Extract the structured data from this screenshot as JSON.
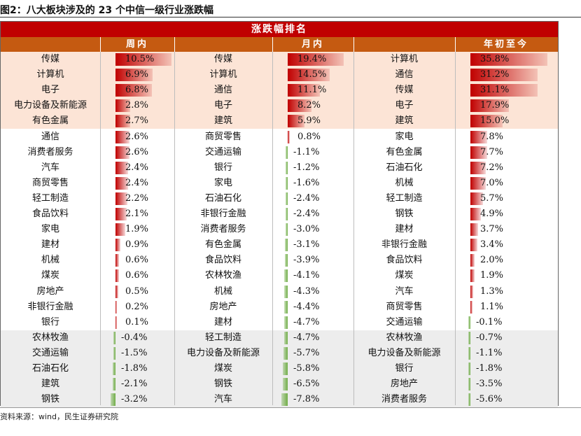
{
  "figure_title": "图2：八大板块涉及的 23 个中信一级行业涨跌幅",
  "source": "资料来源：wind，民生证券研究院",
  "chart_data": {
    "type": "table",
    "title": "涨跌幅排名",
    "columns": [
      "周内",
      "月内",
      "年初至今"
    ],
    "units": "%",
    "highlight_top": 5,
    "highlight_bottom": 5,
    "colors": {
      "positive_bar": "#c00000",
      "negative_bar": "#70ad47",
      "top_bg": "#fce4d6",
      "bottom_bg": "#ededed",
      "banner": "#c00000",
      "header": "#c55a11"
    },
    "panels": [
      {
        "period": "周内",
        "rows": [
          [
            "传媒",
            10.5
          ],
          [
            "计算机",
            6.9
          ],
          [
            "电子",
            6.8
          ],
          [
            "电力设备及新能源",
            2.8
          ],
          [
            "有色金属",
            2.7
          ],
          [
            "通信",
            2.6
          ],
          [
            "消费者服务",
            2.6
          ],
          [
            "汽车",
            2.4
          ],
          [
            "商贸零售",
            2.4
          ],
          [
            "轻工制造",
            2.2
          ],
          [
            "食品饮料",
            2.1
          ],
          [
            "家电",
            1.9
          ],
          [
            "建材",
            0.9
          ],
          [
            "机械",
            0.6
          ],
          [
            "煤炭",
            0.6
          ],
          [
            "房地产",
            0.5
          ],
          [
            "非银行金融",
            0.2
          ],
          [
            "银行",
            0.1
          ],
          [
            "农林牧渔",
            -0.4
          ],
          [
            "交通运输",
            -1.5
          ],
          [
            "石油石化",
            -1.8
          ],
          [
            "建筑",
            -2.1
          ],
          [
            "钢铁",
            -3.2
          ]
        ]
      },
      {
        "period": "月内",
        "rows": [
          [
            "传媒",
            19.4
          ],
          [
            "计算机",
            14.5
          ],
          [
            "通信",
            11.1
          ],
          [
            "电子",
            8.2
          ],
          [
            "建筑",
            5.9
          ],
          [
            "商贸零售",
            0.8
          ],
          [
            "交通运输",
            -1.1
          ],
          [
            "银行",
            -1.2
          ],
          [
            "家电",
            -1.6
          ],
          [
            "石油石化",
            -2.4
          ],
          [
            "非银行金融",
            -2.4
          ],
          [
            "消费者服务",
            -3.0
          ],
          [
            "有色金属",
            -3.1
          ],
          [
            "食品饮料",
            -3.9
          ],
          [
            "农林牧渔",
            -4.1
          ],
          [
            "机械",
            -4.3
          ],
          [
            "房地产",
            -4.4
          ],
          [
            "建材",
            -4.7
          ],
          [
            "轻工制造",
            -4.7
          ],
          [
            "电力设备及新能源",
            -5.7
          ],
          [
            "煤炭",
            -5.8
          ],
          [
            "钢铁",
            -6.5
          ],
          [
            "汽车",
            -7.8
          ]
        ]
      },
      {
        "period": "年初至今",
        "rows": [
          [
            "计算机",
            35.8
          ],
          [
            "通信",
            31.2
          ],
          [
            "传媒",
            31.1
          ],
          [
            "电子",
            17.9
          ],
          [
            "建筑",
            15.0
          ],
          [
            "家电",
            7.8
          ],
          [
            "有色金属",
            7.7
          ],
          [
            "石油石化",
            7.2
          ],
          [
            "机械",
            7.0
          ],
          [
            "轻工制造",
            5.7
          ],
          [
            "钢铁",
            4.9
          ],
          [
            "建材",
            3.7
          ],
          [
            "非银行金融",
            3.4
          ],
          [
            "食品饮料",
            2.0
          ],
          [
            "煤炭",
            1.9
          ],
          [
            "汽车",
            1.3
          ],
          [
            "商贸零售",
            1.1
          ],
          [
            "交通运输",
            -0.1
          ],
          [
            "农林牧渔",
            -0.7
          ],
          [
            "电力设备及新能源",
            -1.1
          ],
          [
            "银行",
            -1.8
          ],
          [
            "房地产",
            -3.5
          ],
          [
            "消费者服务",
            -5.6
          ]
        ]
      }
    ]
  }
}
